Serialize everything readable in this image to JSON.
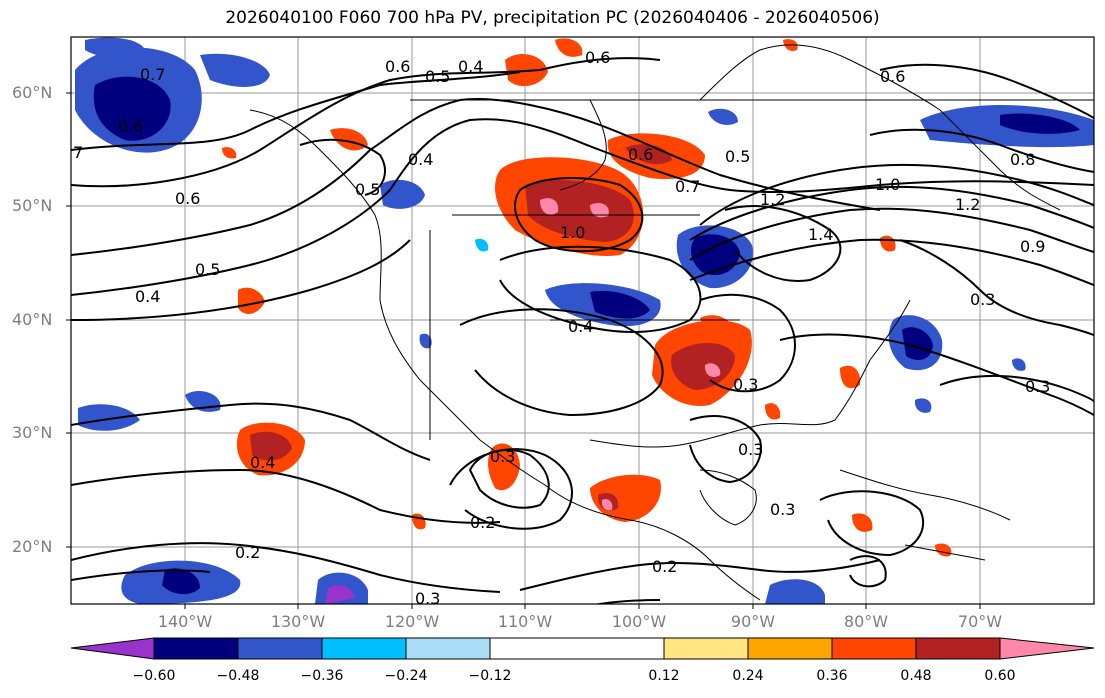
{
  "title": "2026040100 F060 700 hPa PV, precipitation PC (2026040406 - 2026040506)",
  "map": {
    "lat_labels": [
      "60°N",
      "50°N",
      "40°N",
      "30°N",
      "20°N"
    ],
    "lon_labels": [
      "140°W",
      "130°W",
      "120°W",
      "110°W",
      "100°W",
      "90°W",
      "80°W",
      "70°W"
    ],
    "contour_labels": [
      "0.7",
      "0.6",
      "7",
      "0.6",
      "0.5",
      "0.4",
      "0.4",
      "0.6",
      "0.5",
      "0.6",
      "0.4",
      "0.5",
      "0.5",
      "0.6",
      "0.7",
      "1.0",
      "1.2",
      "1.4",
      "1.0",
      "1.2",
      "0.9",
      "0.8",
      "0.3",
      "0.6",
      "0.3",
      "0.3",
      "0.3",
      "0.4",
      "0.2",
      "0.2",
      "0.2",
      "0.3",
      "0.3",
      "0.3",
      "0.4"
    ]
  },
  "colorbar": {
    "ticks": [
      "−0.60",
      "−0.48",
      "−0.36",
      "−0.24",
      "−0.12",
      "0.12",
      "0.24",
      "0.36",
      "0.48",
      "0.60"
    ],
    "colors": [
      "#9933cc",
      "#00007f",
      "#3355cc",
      "#00bfff",
      "#aadcf5",
      "#ffffff",
      "#ffe680",
      "#ffa500",
      "#ff4500",
      "#b22222",
      "#ff88aa"
    ]
  }
}
